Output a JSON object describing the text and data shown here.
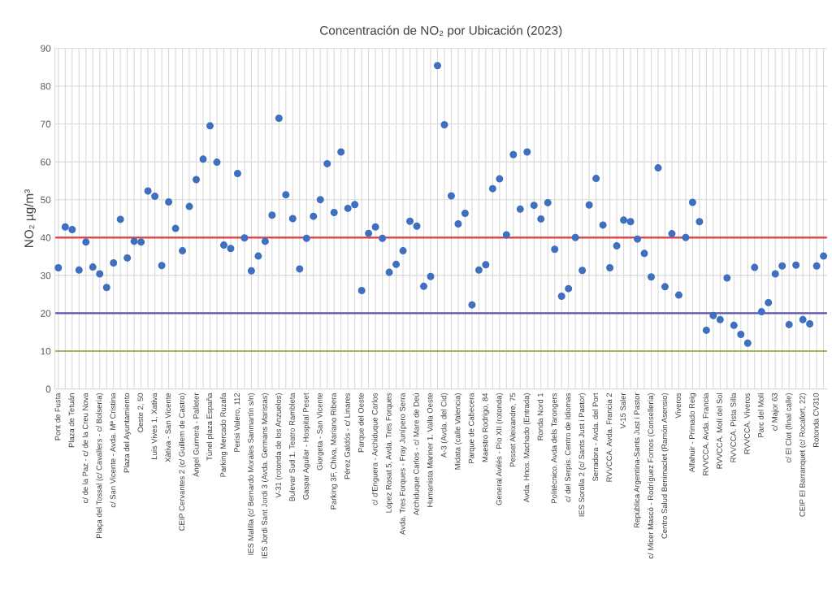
{
  "chart_data": {
    "type": "scatter",
    "title": "Concentración de NO₂ por Ubicación (2023)",
    "ylabel": "NO₂ µg/m³",
    "categories": [
      "Pont de Fusta",
      null,
      "Plaza de Tetuán",
      null,
      "c/ de la Paz - c/ de la Creu Nova",
      null,
      "Plaça del Tossal (c/ Cavallers - c/ Bolsería)",
      null,
      "c/ San Vicente - Avda. Mª Cristina",
      null,
      "Plaza del Ayuntamiento",
      null,
      "Oeste 2, 50",
      null,
      "Luis Vives 1, Xativa",
      null,
      "Xàtiva - San Vicente",
      null,
      "CEIP Cervantes 2 (c/ Guillem de Castro)",
      null,
      "Àngel Guimerà - Palleter",
      null,
      "Túnel plaza España",
      null,
      "Parking Mercado Ruzafa",
      null,
      "Perisi Valero, 112",
      null,
      "IES Malilla (c/ Bernardo Morales Sanmartín s/n)",
      null,
      "IES Jordi Sant Jordi 3 (Avda. Germans Maristas)",
      null,
      "V-31 (rotonda de los Anzuelos)",
      null,
      "Bulevar Sud 1. Teatro Rambleta",
      null,
      "Gaspar Aguilar - Hospital Peset",
      null,
      "Giorgeta - San Vicente",
      null,
      "Parking 3F, Chiva, Mariano Ribera",
      null,
      "Pérez Galdós - c/ Linares",
      null,
      "Parque del Oeste",
      null,
      "c/ d'Enguera - Archiduque Carlos",
      null,
      "López Rosat 5, Avda. Tres Forques",
      null,
      "Avda. Tres Forques - Fray Junípero Serra",
      null,
      "Archiduque Carlos - c/ Mare de Deú",
      null,
      "Humanista Mariner 1. Valla Oeste",
      null,
      "A-3 (Avda. del Cid)",
      null,
      "Midata (calle Valencia)",
      null,
      "Parque de Cabecera",
      null,
      "Maestro Rodrigo, 84",
      null,
      "General Avilés - Pío XII (rotonda)",
      null,
      "Pesset Aleixandre, 75",
      null,
      "Avda. Hnos. Machado (Entrada)",
      null,
      "Ronda Nord 1",
      null,
      "Politécnico. Avda dels Tarongers",
      null,
      "c/ del Serpis. Centro de Idiomas",
      null,
      "IES Sorolla 2 (c/ Sants Just i Pastor)",
      null,
      "Serradora - Avda. del Port",
      null,
      "RVVCCA. Avda. Francia 2",
      null,
      "V-15 Saler",
      null,
      "República Argentina-Sants Just i Pastor",
      null,
      "c/ Micer Mascó - Rodríguez Fornos (Consellería)",
      null,
      "Centro Salud Benimaclet (Ramón Asensio)",
      null,
      "Viveros",
      null,
      "Alfahuir - Primado Reig",
      null,
      "RVVCCA. Avda. Francia",
      null,
      "RVVCCA. Molí del Sol",
      null,
      "RVVCCA. Pista Silla",
      null,
      "RVVCCA. Viveros",
      null,
      "Parc del Molí",
      null,
      "c/ Major 63",
      null,
      "c/ El Clot (final calle)",
      null,
      "CEIP El Barranquet (c/ Rocafort, 22)",
      null,
      "Rotonda CV310",
      null
    ],
    "series": [
      {
        "color": "#3f6fbf",
        "values": [
          32.0,
          42.8,
          42.1,
          31.4,
          38.8,
          32.2,
          30.4,
          26.8,
          33.3,
          44.8,
          34.6,
          39.0,
          38.8,
          52.3,
          50.9,
          32.6,
          49.4,
          42.4,
          36.5,
          48.2,
          55.3,
          60.7,
          69.5,
          59.9,
          38.0,
          37.1,
          56.9,
          39.9,
          31.2,
          35.1,
          39.0,
          45.9,
          71.5,
          51.3,
          45.0,
          31.7,
          39.8,
          45.6,
          50.0,
          59.5,
          46.6,
          62.6,
          47.7,
          48.7,
          26.0,
          41.1,
          42.8,
          39.8,
          30.8,
          32.9,
          36.5,
          44.3,
          43.0,
          27.1,
          29.7,
          85.4,
          69.8,
          51.0,
          43.6,
          46.4,
          22.2,
          31.4,
          32.8,
          52.9,
          55.5,
          40.7,
          61.9,
          47.5,
          62.6,
          48.5,
          44.9,
          49.2,
          36.9,
          24.5,
          26.5,
          40.0,
          31.3,
          48.6,
          55.6,
          43.3,
          32.0,
          37.8,
          44.6,
          44.2,
          39.6,
          35.8,
          29.6,
          58.4,
          27.0,
          41.0,
          24.8,
          40.0,
          49.3,
          44.2,
          15.5,
          19.4,
          18.3,
          29.3,
          16.8,
          14.4,
          12.1,
          32.1,
          20.4,
          22.8,
          30.4,
          32.5,
          17.0,
          32.7,
          18.3,
          17.2,
          32.5,
          35.1
        ]
      }
    ],
    "ylim": [
      0,
      90
    ],
    "yticks": [
      0,
      10,
      20,
      30,
      40,
      50,
      60,
      70,
      80,
      90
    ],
    "grid": true,
    "marker": "circle",
    "ref_lines": [
      {
        "axis": "y",
        "value": 40,
        "color": "#e03a3a"
      },
      {
        "axis": "y",
        "value": 20,
        "color": "#5a54a8"
      },
      {
        "axis": "y",
        "value": 10,
        "color": "#9bbb59"
      }
    ]
  }
}
